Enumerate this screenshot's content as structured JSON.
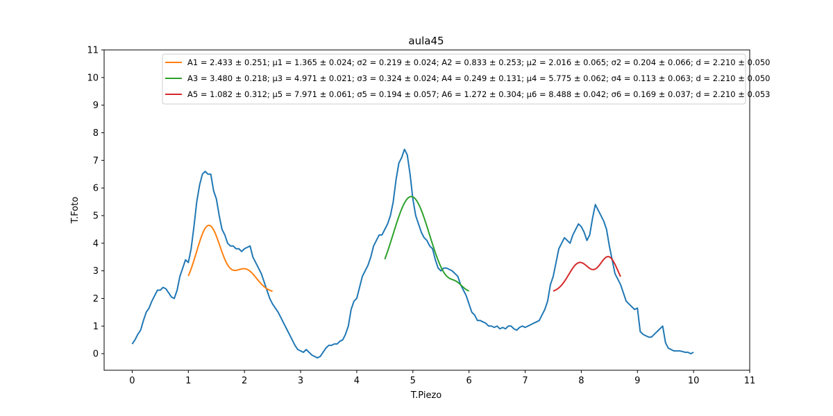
{
  "chart_data": {
    "type": "line",
    "title": "aula45",
    "xlabel": "T.Piezo",
    "ylabel": "T.Foto",
    "xlim": [
      -0.5,
      11
    ],
    "ylim": [
      -0.6,
      11
    ],
    "xticks": [
      "0",
      "1",
      "2",
      "3",
      "4",
      "5",
      "6",
      "7",
      "8",
      "9",
      "10",
      "11"
    ],
    "yticks": [
      "0",
      "1",
      "2",
      "3",
      "4",
      "5",
      "6",
      "7",
      "8",
      "9",
      "10",
      "11"
    ],
    "grid": false,
    "legend_position": "top-right",
    "series": [
      {
        "color": "#1f77b4",
        "x": [
          0.0,
          0.05,
          0.1,
          0.15,
          0.2,
          0.25,
          0.3,
          0.35,
          0.4,
          0.45,
          0.5,
          0.55,
          0.6,
          0.65,
          0.7,
          0.75,
          0.8,
          0.85,
          0.9,
          0.95,
          1.0,
          1.05,
          1.1,
          1.15,
          1.2,
          1.25,
          1.3,
          1.35,
          1.4,
          1.45,
          1.5,
          1.55,
          1.6,
          1.65,
          1.7,
          1.75,
          1.8,
          1.85,
          1.9,
          1.95,
          2.0,
          2.05,
          2.1,
          2.15,
          2.2,
          2.25,
          2.3,
          2.35,
          2.4,
          2.45,
          2.5,
          2.55,
          2.6,
          2.65,
          2.7,
          2.75,
          2.8,
          2.85,
          2.9,
          2.95,
          3.0,
          3.05,
          3.1,
          3.15,
          3.2,
          3.25,
          3.3,
          3.35,
          3.4,
          3.45,
          3.5,
          3.55,
          3.6,
          3.65,
          3.7,
          3.75,
          3.8,
          3.85,
          3.9,
          3.95,
          4.0,
          4.05,
          4.1,
          4.15,
          4.2,
          4.25,
          4.3,
          4.35,
          4.4,
          4.45,
          4.5,
          4.55,
          4.6,
          4.65,
          4.7,
          4.75,
          4.8,
          4.85,
          4.9,
          4.95,
          5.0,
          5.05,
          5.1,
          5.15,
          5.2,
          5.25,
          5.3,
          5.35,
          5.4,
          5.45,
          5.5,
          5.55,
          5.6,
          5.65,
          5.7,
          5.75,
          5.8,
          5.85,
          5.9,
          5.95,
          6.0,
          6.05,
          6.1,
          6.15,
          6.2,
          6.25,
          6.3,
          6.35,
          6.4,
          6.45,
          6.5,
          6.55,
          6.6,
          6.65,
          6.7,
          6.75,
          6.8,
          6.85,
          6.9,
          6.95,
          7.0,
          7.05,
          7.1,
          7.15,
          7.2,
          7.25,
          7.3,
          7.35,
          7.4,
          7.45,
          7.5,
          7.55,
          7.6,
          7.65,
          7.7,
          7.75,
          7.8,
          7.85,
          7.9,
          7.95,
          8.0,
          8.05,
          8.1,
          8.15,
          8.2,
          8.25,
          8.3,
          8.35,
          8.4,
          8.45,
          8.5,
          8.55,
          8.6,
          8.65,
          8.7,
          8.75,
          8.8,
          8.85,
          8.9,
          8.95,
          9.0,
          9.05,
          9.1,
          9.15,
          9.2,
          9.25,
          9.3,
          9.35,
          9.4,
          9.45,
          9.5,
          9.55,
          9.6,
          9.65,
          9.7,
          9.75,
          9.8,
          9.85,
          9.9,
          9.95,
          10.0
        ],
        "y": [
          0.35,
          0.5,
          0.7,
          0.85,
          1.2,
          1.5,
          1.65,
          1.9,
          2.1,
          2.3,
          2.3,
          2.4,
          2.35,
          2.2,
          2.05,
          2.0,
          2.3,
          2.8,
          3.1,
          3.4,
          3.3,
          3.8,
          4.6,
          5.5,
          6.1,
          6.5,
          6.6,
          6.5,
          6.5,
          5.9,
          5.6,
          5.0,
          4.5,
          4.3,
          4.0,
          3.9,
          3.9,
          3.8,
          3.8,
          3.7,
          3.8,
          3.85,
          3.9,
          3.5,
          3.3,
          3.1,
          2.9,
          2.6,
          2.3,
          2.0,
          1.8,
          1.65,
          1.5,
          1.3,
          1.1,
          0.9,
          0.7,
          0.5,
          0.3,
          0.15,
          0.1,
          0.05,
          0.15,
          0.05,
          -0.05,
          -0.1,
          -0.15,
          -0.1,
          0.05,
          0.2,
          0.3,
          0.3,
          0.35,
          0.35,
          0.45,
          0.5,
          0.7,
          1.0,
          1.6,
          1.9,
          2.0,
          2.4,
          2.8,
          3.0,
          3.2,
          3.5,
          3.9,
          4.1,
          4.3,
          4.3,
          4.5,
          4.7,
          5.0,
          5.5,
          6.3,
          6.9,
          7.1,
          7.4,
          7.2,
          6.5,
          5.6,
          5.0,
          4.7,
          4.4,
          4.2,
          4.1,
          3.9,
          3.8,
          3.4,
          3.1,
          3.0,
          3.1,
          3.1,
          3.05,
          3.0,
          2.9,
          2.8,
          2.5,
          2.3,
          2.1,
          1.8,
          1.5,
          1.4,
          1.2,
          1.2,
          1.15,
          1.1,
          1.0,
          1.0,
          0.95,
          1.0,
          0.9,
          0.95,
          0.9,
          1.0,
          1.0,
          0.9,
          0.85,
          0.95,
          1.0,
          0.95,
          1.0,
          1.05,
          1.1,
          1.15,
          1.2,
          1.4,
          1.6,
          1.9,
          2.5,
          2.8,
          3.3,
          3.8,
          4.0,
          4.2,
          4.1,
          4.0,
          4.3,
          4.5,
          4.7,
          4.6,
          4.4,
          4.1,
          4.3,
          4.9,
          5.4,
          5.2,
          5.0,
          4.8,
          4.5,
          3.9,
          3.4,
          2.9,
          2.7,
          2.5,
          2.2,
          1.9,
          1.8,
          1.7,
          1.6,
          1.65,
          0.8,
          0.7,
          0.65,
          0.6,
          0.6,
          0.7,
          0.8,
          0.9,
          1.0,
          0.4,
          0.2,
          0.15,
          0.1,
          0.1,
          0.1,
          0.08,
          0.05,
          0.05,
          0.0,
          0.05
        ]
      },
      {
        "name": "A1 = 2.433 ± 0.251; μ1 = 1.365 ± 0.024; σ2 = 0.219 ± 0.024; A2 = 0.833 ± 0.253; μ2 = 2.016 ± 0.065; σ2 = 0.204 ± 0.066; d = 2.210 ± 0.050",
        "color": "#ff7f0e",
        "fit": {
          "d": 2.21,
          "peaks": [
            {
              "A": 2.433,
              "mu": 1.365,
              "sigma": 0.219
            },
            {
              "A": 0.833,
              "mu": 2.016,
              "sigma": 0.204
            }
          ],
          "xmin": 1.0,
          "xmax": 2.5
        }
      },
      {
        "name": "A3 = 3.480 ± 0.218; μ3 = 4.971 ± 0.021; σ3 = 0.324 ± 0.024; A4 = 0.249 ± 0.131; μ4 = 5.775 ± 0.062; σ4 = 0.113 ± 0.063; d = 2.210 ± 0.050",
        "color": "#2ca02c",
        "fit": {
          "d": 2.21,
          "peaks": [
            {
              "A": 3.48,
              "mu": 4.971,
              "sigma": 0.324
            },
            {
              "A": 0.249,
              "mu": 5.775,
              "sigma": 0.113
            }
          ],
          "xmin": 4.5,
          "xmax": 6.0
        }
      },
      {
        "name": "A5 = 1.082 ± 0.312; μ5 = 7.971 ± 0.061; σ5 = 0.194 ± 0.057; A6 = 1.272 ± 0.304; μ6 = 8.488 ± 0.042; σ6 = 0.169 ± 0.037; d = 2.210 ± 0.053",
        "color": "#d62728",
        "fit": {
          "d": 2.21,
          "peaks": [
            {
              "A": 1.082,
              "mu": 7.971,
              "sigma": 0.194
            },
            {
              "A": 1.272,
              "mu": 8.488,
              "sigma": 0.169
            }
          ],
          "xmin": 7.5,
          "xmax": 8.7
        }
      }
    ]
  }
}
